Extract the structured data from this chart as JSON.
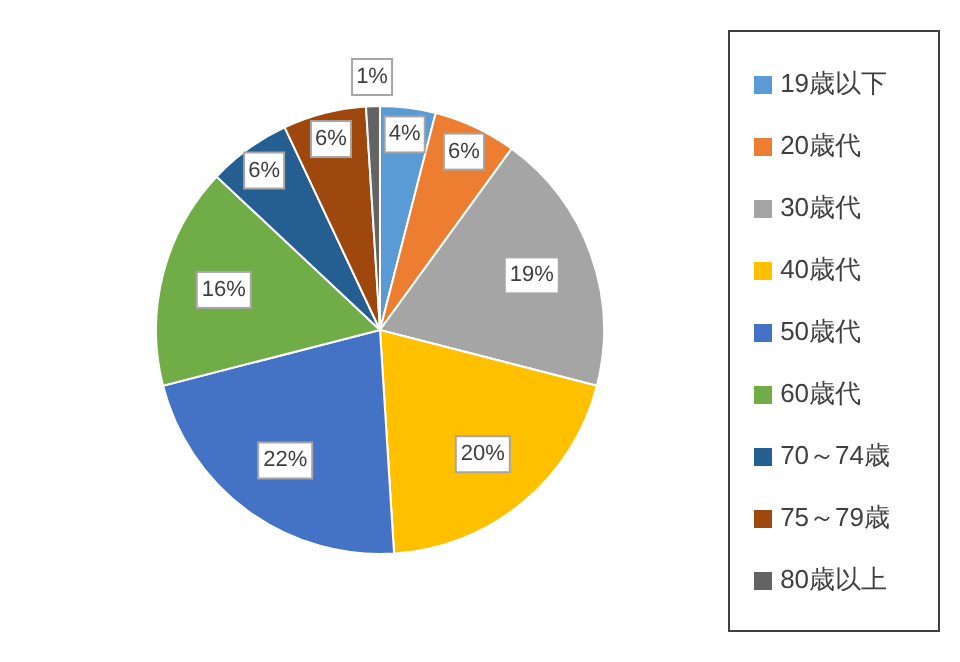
{
  "chart_data": {
    "type": "pie",
    "categories": [
      "19歳以下",
      "20歳代",
      "30歳代",
      "40歳代",
      "50歳代",
      "60歳代",
      "70～74歳",
      "75～79歳",
      "80歳以上"
    ],
    "values": [
      4,
      6,
      19,
      20,
      22,
      16,
      6,
      6,
      1
    ],
    "colors": [
      "#5b9bd5",
      "#ed7d31",
      "#a5a5a5",
      "#ffc000",
      "#4472c4",
      "#70ad47",
      "#255e91",
      "#9e480e",
      "#636363"
    ],
    "value_labels": [
      "4%",
      "6%",
      "19%",
      "20%",
      "22%",
      "16%",
      "6%",
      "6%",
      "1%"
    ],
    "legend": "right"
  }
}
